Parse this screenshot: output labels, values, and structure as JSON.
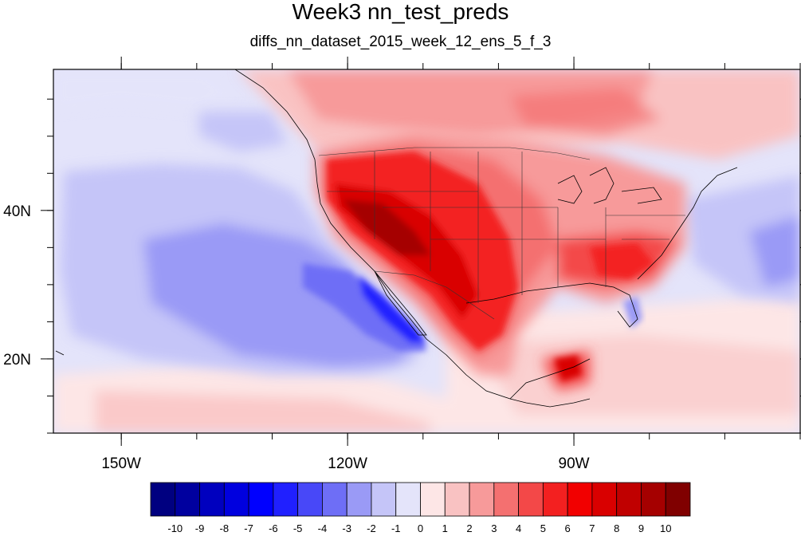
{
  "title": "Week3 nn_test_preds",
  "subtitle": "diffs_nn_dataset_2015_week_12_ens_5_f_3",
  "axes": {
    "x_ticks": [
      {
        "label": "150W",
        "lon": -150
      },
      {
        "label": "120W",
        "lon": -120
      },
      {
        "label": "90W",
        "lon": -90
      }
    ],
    "y_ticks": [
      {
        "label": "40N",
        "lat": 40
      },
      {
        "label": "20N",
        "lat": 20
      }
    ],
    "lon_range": [
      -159,
      -60
    ],
    "lat_range": [
      10,
      59
    ],
    "minor_lon_step": 10,
    "minor_lat_step": 5
  },
  "colorbar": {
    "levels": [
      "-10",
      "-9",
      "-8",
      "-7",
      "-6",
      "-5",
      "-4",
      "-3",
      "-2",
      "-1",
      "0",
      "1",
      "2",
      "3",
      "4",
      "5",
      "6",
      "7",
      "8",
      "9",
      "10"
    ],
    "colors": [
      "#000080",
      "#00009f",
      "#0000bf",
      "#0000df",
      "#0000ff",
      "#2020ff",
      "#4848f8",
      "#6e6ef6",
      "#9a9af6",
      "#c5c5f8",
      "#e4e4fa",
      "#fde6e6",
      "#f9c2c2",
      "#f79a9a",
      "#f47070",
      "#f34848",
      "#f32020",
      "#f20000",
      "#d90000",
      "#c00000",
      "#a50000",
      "#800000"
    ]
  },
  "colors": {
    "background": "#ffffff",
    "neutral_fill": "#e4e4fa"
  }
}
